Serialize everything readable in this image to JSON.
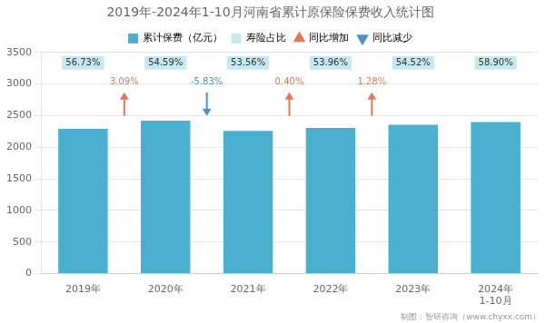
{
  "chart_data": {
    "type": "bar",
    "title": "2019年-2024年1-10月河南省累计原保险保费收入统计图",
    "categories": [
      "2019年",
      "2020年",
      "2021年",
      "2022年",
      "2023年",
      "2024年\n1-10月"
    ],
    "series": [
      {
        "name": "累计保费（亿元）",
        "color": "#4ab0d0",
        "values": [
          2290,
          2420,
          2260,
          2305,
          2355,
          2400
        ]
      }
    ],
    "annotations": [
      {
        "name": "寿险占比",
        "color": "#c8e8f0",
        "marker": "square",
        "texts": [
          "56.73%",
          "54.59%",
          "53.56%",
          "53.96%",
          "54.52%",
          "58.90%"
        ]
      },
      {
        "name": "同比增加",
        "color": "#e07858",
        "marker": "triangle_up",
        "texts": [
          "3.09%",
          null,
          "0.40%",
          "1.28%",
          null
        ]
      },
      {
        "name": "同比减少",
        "color": "#5090c8",
        "marker": "triangle_down",
        "texts": [
          null,
          "-5.83%",
          null,
          null,
          null
        ]
      },
      {
        "text": "制图：智研咨询（www.chyxx.com）"
      }
    ],
    "ylim": [
      0,
      3500
    ],
    "yticks": [
      0,
      500,
      1000,
      1500,
      2000,
      2500,
      3000,
      3500
    ],
    "grid": true,
    "legend": "top"
  }
}
